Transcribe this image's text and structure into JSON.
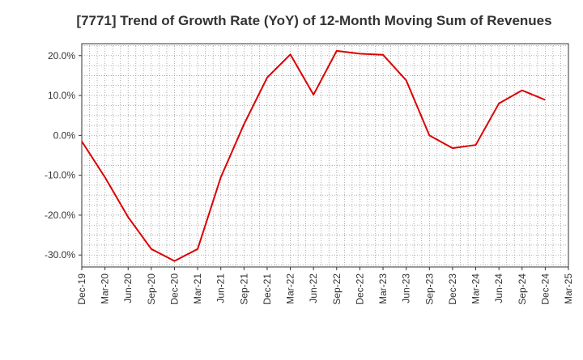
{
  "chart_data": {
    "type": "line",
    "title": "[7771]  Trend of Growth Rate (YoY) of 12-Month Moving Sum of Revenues",
    "xlabel": "",
    "ylabel": "",
    "x_ticks": [
      "Dec-19",
      "Mar-20",
      "Jun-20",
      "Sep-20",
      "Dec-20",
      "Mar-21",
      "Jun-21",
      "Sep-21",
      "Dec-21",
      "Mar-22",
      "Jun-22",
      "Sep-22",
      "Dec-22",
      "Mar-23",
      "Jun-23",
      "Sep-23",
      "Dec-23",
      "Mar-24",
      "Jun-24",
      "Sep-24",
      "Dec-24",
      "Mar-25"
    ],
    "y_ticks": [
      "20.0%",
      "10.0%",
      "0.0%",
      "-10.0%",
      "-20.0%",
      "-30.0%"
    ],
    "y_tick_values": [
      20,
      10,
      0,
      -10,
      -20,
      -30
    ],
    "ylim": [
      -33,
      23
    ],
    "grid": true,
    "series": [
      {
        "color": "#dd0000",
        "x": [
          "Dec-19",
          "Mar-20",
          "Jun-20",
          "Sep-20",
          "Dec-20",
          "Mar-21",
          "Jun-21",
          "Sep-21",
          "Dec-21",
          "Mar-22",
          "Jun-22",
          "Sep-22",
          "Dec-22",
          "Mar-23",
          "Jun-23",
          "Sep-23",
          "Dec-23",
          "Mar-24",
          "Jun-24",
          "Sep-24",
          "Dec-24"
        ],
        "values": [
          -1.5,
          -10.5,
          -20.5,
          -28.5,
          -31.5,
          -28.5,
          -10.5,
          2.8,
          14.5,
          20.3,
          10.2,
          21.2,
          20.5,
          20.2,
          13.8,
          0.0,
          -3.2,
          -2.4,
          8.0,
          11.3,
          8.9
        ]
      }
    ]
  }
}
